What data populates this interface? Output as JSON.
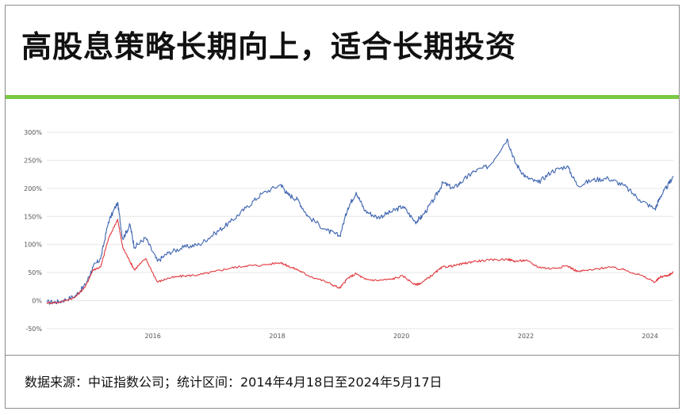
{
  "title": "高股息策略长期向上，适合长期投资",
  "source": "数据来源：中证指数公司；统计区间：2014年4月18日至2024年5月17日",
  "colors": {
    "accent_rule": "#7ac943",
    "series_blue": "#3e64b0",
    "series_red": "#e0393e"
  },
  "chart_data": {
    "type": "line",
    "title": "",
    "xlabel": "",
    "ylabel": "",
    "x_range": [
      "2014-04-18",
      "2024-05-17"
    ],
    "ylim": [
      -50,
      300
    ],
    "yticks": [
      -50,
      0,
      50,
      100,
      150,
      200,
      250,
      300
    ],
    "ytick_labels": [
      "-50%",
      "0%",
      "50%",
      "100%",
      "150%",
      "200%",
      "250%",
      "300%"
    ],
    "xticks": [
      "2016-01-01",
      "2018-01-01",
      "2020-01-01",
      "2022-01-01",
      "2024-01-01"
    ],
    "xtick_labels": [
      "2016",
      "2018",
      "2020",
      "2022",
      "2024"
    ],
    "grid": true,
    "legend": "none",
    "series": [
      {
        "color": "#3e64b0",
        "points": [
          [
            "2014-04-18",
            -3
          ],
          [
            "2014-07-01",
            -2
          ],
          [
            "2014-10-01",
            8
          ],
          [
            "2014-12-01",
            28
          ],
          [
            "2015-01-15",
            60
          ],
          [
            "2015-03-01",
            75
          ],
          [
            "2015-04-15",
            140
          ],
          [
            "2015-06-08",
            175
          ],
          [
            "2015-07-08",
            110
          ],
          [
            "2015-08-20",
            135
          ],
          [
            "2015-09-15",
            95
          ],
          [
            "2015-11-20",
            112
          ],
          [
            "2016-01-28",
            70
          ],
          [
            "2016-04-01",
            85
          ],
          [
            "2016-07-01",
            95
          ],
          [
            "2016-10-01",
            100
          ],
          [
            "2017-01-01",
            120
          ],
          [
            "2017-04-01",
            140
          ],
          [
            "2017-07-01",
            165
          ],
          [
            "2017-10-01",
            190
          ],
          [
            "2018-01-24",
            207
          ],
          [
            "2018-03-01",
            190
          ],
          [
            "2018-05-01",
            180
          ],
          [
            "2018-07-01",
            150
          ],
          [
            "2018-10-20",
            125
          ],
          [
            "2019-01-04",
            115
          ],
          [
            "2019-02-20",
            165
          ],
          [
            "2019-04-10",
            193
          ],
          [
            "2019-06-01",
            160
          ],
          [
            "2019-08-15",
            148
          ],
          [
            "2019-11-01",
            158
          ],
          [
            "2020-01-10",
            168
          ],
          [
            "2020-03-23",
            140
          ],
          [
            "2020-05-01",
            150
          ],
          [
            "2020-07-10",
            180
          ],
          [
            "2020-09-01",
            210
          ],
          [
            "2020-11-01",
            200
          ],
          [
            "2021-01-01",
            215
          ],
          [
            "2021-03-01",
            230
          ],
          [
            "2021-06-01",
            240
          ],
          [
            "2021-09-14",
            288
          ],
          [
            "2021-11-01",
            245
          ],
          [
            "2022-01-01",
            220
          ],
          [
            "2022-03-15",
            210
          ],
          [
            "2022-06-01",
            230
          ],
          [
            "2022-09-01",
            240
          ],
          [
            "2022-11-01",
            205
          ],
          [
            "2023-02-01",
            215
          ],
          [
            "2023-05-01",
            218
          ],
          [
            "2023-08-01",
            205
          ],
          [
            "2023-11-01",
            180
          ],
          [
            "2024-01-31",
            163
          ],
          [
            "2024-03-01",
            185
          ],
          [
            "2024-04-15",
            205
          ],
          [
            "2024-05-17",
            222
          ]
        ]
      },
      {
        "color": "#e0393e",
        "points": [
          [
            "2014-04-18",
            -4
          ],
          [
            "2014-07-01",
            -3
          ],
          [
            "2014-10-01",
            6
          ],
          [
            "2014-12-01",
            25
          ],
          [
            "2015-01-15",
            55
          ],
          [
            "2015-03-01",
            60
          ],
          [
            "2015-04-15",
            110
          ],
          [
            "2015-06-08",
            145
          ],
          [
            "2015-07-08",
            95
          ],
          [
            "2015-08-20",
            70
          ],
          [
            "2015-09-15",
            55
          ],
          [
            "2015-11-20",
            75
          ],
          [
            "2016-01-28",
            33
          ],
          [
            "2016-04-01",
            40
          ],
          [
            "2016-07-01",
            44
          ],
          [
            "2016-10-01",
            46
          ],
          [
            "2017-01-01",
            52
          ],
          [
            "2017-04-01",
            58
          ],
          [
            "2017-07-01",
            62
          ],
          [
            "2017-10-01",
            63
          ],
          [
            "2018-01-24",
            68
          ],
          [
            "2018-03-01",
            62
          ],
          [
            "2018-05-01",
            55
          ],
          [
            "2018-07-01",
            45
          ],
          [
            "2018-10-20",
            33
          ],
          [
            "2019-01-04",
            22
          ],
          [
            "2019-02-20",
            40
          ],
          [
            "2019-04-10",
            48
          ],
          [
            "2019-06-01",
            38
          ],
          [
            "2019-08-15",
            36
          ],
          [
            "2019-11-01",
            38
          ],
          [
            "2020-01-10",
            44
          ],
          [
            "2020-03-23",
            28
          ],
          [
            "2020-05-01",
            32
          ],
          [
            "2020-07-10",
            48
          ],
          [
            "2020-09-01",
            60
          ],
          [
            "2020-11-01",
            62
          ],
          [
            "2021-01-01",
            66
          ],
          [
            "2021-03-01",
            70
          ],
          [
            "2021-06-01",
            72
          ],
          [
            "2021-09-14",
            74
          ],
          [
            "2021-11-01",
            70
          ],
          [
            "2022-01-01",
            72
          ],
          [
            "2022-03-15",
            60
          ],
          [
            "2022-06-01",
            57
          ],
          [
            "2022-09-01",
            62
          ],
          [
            "2022-11-01",
            52
          ],
          [
            "2023-02-01",
            55
          ],
          [
            "2023-05-01",
            60
          ],
          [
            "2023-08-01",
            55
          ],
          [
            "2023-11-01",
            46
          ],
          [
            "2024-01-31",
            33
          ],
          [
            "2024-03-01",
            42
          ],
          [
            "2024-04-15",
            45
          ],
          [
            "2024-05-17",
            50
          ]
        ]
      }
    ]
  }
}
